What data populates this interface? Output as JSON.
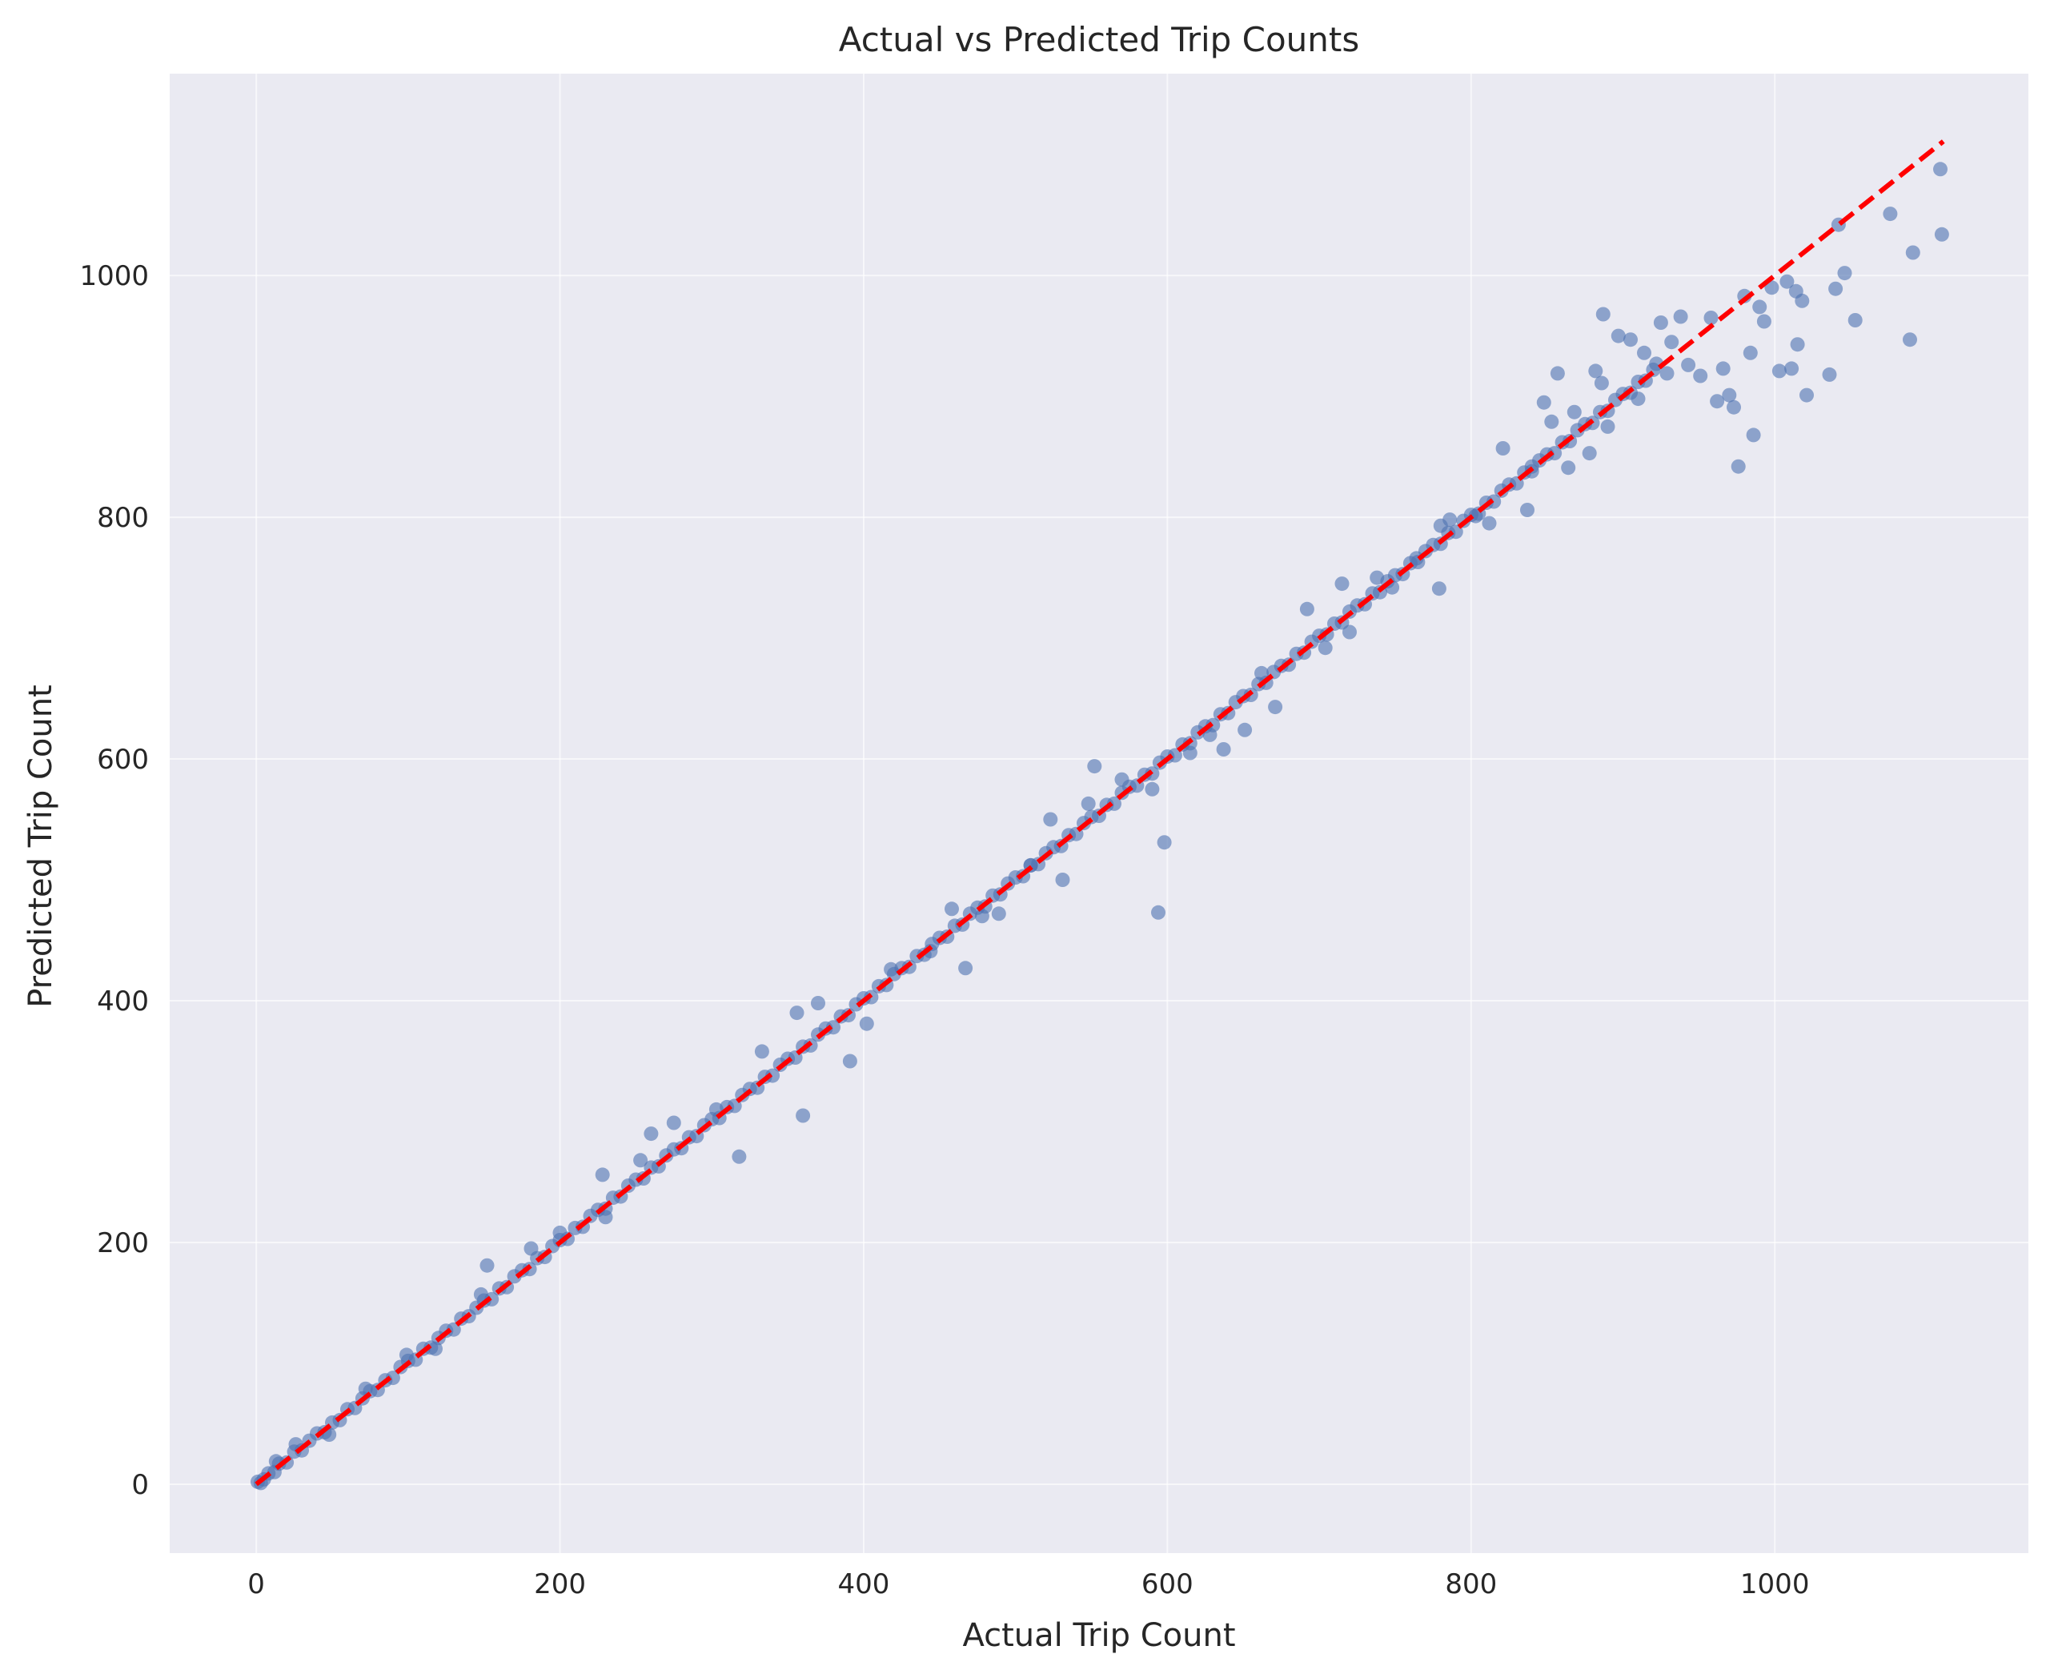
{
  "chart_data": {
    "type": "scatter",
    "title": "Actual vs Predicted Trip Counts",
    "xlabel": "Actual Trip Count",
    "ylabel": "Predicted Trip Count",
    "xlim": [
      -57,
      1167
    ],
    "ylim": [
      -57,
      1167
    ],
    "x_ticks": [
      0,
      200,
      400,
      600,
      800,
      1000
    ],
    "y_ticks": [
      0,
      200,
      400,
      600,
      800,
      1000
    ],
    "grid": true,
    "legend": "none",
    "colors": {
      "background": "#eaeaf2",
      "grid": "#ffffff",
      "points": "#4c72b0",
      "reference_line": "#ff0000"
    },
    "reference_line": {
      "style": "dashed",
      "from": [
        0,
        0
      ],
      "to": [
        1111,
        1111
      ]
    },
    "series": [
      {
        "points": [
          [
            1,
            2
          ],
          [
            3,
            1
          ],
          [
            5,
            4
          ],
          [
            8,
            9
          ],
          [
            12,
            10
          ],
          [
            15,
            17
          ],
          [
            20,
            18
          ],
          [
            25,
            27
          ],
          [
            30,
            28
          ],
          [
            35,
            36
          ],
          [
            40,
            42
          ],
          [
            45,
            43
          ],
          [
            50,
            51
          ],
          [
            55,
            53
          ],
          [
            60,
            62
          ],
          [
            65,
            63
          ],
          [
            70,
            71
          ],
          [
            75,
            77
          ],
          [
            80,
            78
          ],
          [
            85,
            86
          ],
          [
            90,
            88
          ],
          [
            95,
            97
          ],
          [
            100,
            102
          ],
          [
            105,
            103
          ],
          [
            110,
            112
          ],
          [
            115,
            113
          ],
          [
            120,
            121
          ],
          [
            125,
            127
          ],
          [
            130,
            128
          ],
          [
            135,
            137
          ],
          [
            140,
            139
          ],
          [
            145,
            146
          ],
          [
            150,
            152
          ],
          [
            155,
            153
          ],
          [
            160,
            162
          ],
          [
            165,
            163
          ],
          [
            170,
            172
          ],
          [
            175,
            177
          ],
          [
            180,
            178
          ],
          [
            185,
            187
          ],
          [
            190,
            188
          ],
          [
            195,
            197
          ],
          [
            200,
            202
          ],
          [
            205,
            203
          ],
          [
            210,
            212
          ],
          [
            215,
            213
          ],
          [
            220,
            222
          ],
          [
            225,
            227
          ],
          [
            230,
            228
          ],
          [
            235,
            237
          ],
          [
            240,
            238
          ],
          [
            245,
            247
          ],
          [
            250,
            252
          ],
          [
            255,
            253
          ],
          [
            260,
            262
          ],
          [
            265,
            263
          ],
          [
            270,
            272
          ],
          [
            275,
            277
          ],
          [
            280,
            278
          ],
          [
            285,
            287
          ],
          [
            290,
            288
          ],
          [
            295,
            297
          ],
          [
            300,
            302
          ],
          [
            305,
            303
          ],
          [
            310,
            312
          ],
          [
            315,
            313
          ],
          [
            320,
            322
          ],
          [
            325,
            327
          ],
          [
            330,
            328
          ],
          [
            335,
            337
          ],
          [
            340,
            338
          ],
          [
            345,
            347
          ],
          [
            350,
            352
          ],
          [
            355,
            353
          ],
          [
            360,
            362
          ],
          [
            365,
            363
          ],
          [
            370,
            372
          ],
          [
            375,
            377
          ],
          [
            380,
            378
          ],
          [
            385,
            387
          ],
          [
            390,
            388
          ],
          [
            395,
            397
          ],
          [
            400,
            402
          ],
          [
            405,
            403
          ],
          [
            410,
            412
          ],
          [
            415,
            413
          ],
          [
            420,
            422
          ],
          [
            425,
            427
          ],
          [
            430,
            428
          ],
          [
            435,
            437
          ],
          [
            440,
            438
          ],
          [
            445,
            447
          ],
          [
            450,
            452
          ],
          [
            455,
            453
          ],
          [
            460,
            462
          ],
          [
            465,
            463
          ],
          [
            470,
            472
          ],
          [
            475,
            477
          ],
          [
            480,
            478
          ],
          [
            485,
            487
          ],
          [
            490,
            488
          ],
          [
            495,
            497
          ],
          [
            500,
            502
          ],
          [
            505,
            503
          ],
          [
            510,
            512
          ],
          [
            515,
            513
          ],
          [
            520,
            522
          ],
          [
            525,
            527
          ],
          [
            530,
            528
          ],
          [
            535,
            537
          ],
          [
            540,
            538
          ],
          [
            545,
            547
          ],
          [
            550,
            552
          ],
          [
            555,
            553
          ],
          [
            560,
            562
          ],
          [
            565,
            563
          ],
          [
            570,
            572
          ],
          [
            575,
            577
          ],
          [
            580,
            578
          ],
          [
            585,
            587
          ],
          [
            590,
            588
          ],
          [
            595,
            597
          ],
          [
            600,
            602
          ],
          [
            605,
            603
          ],
          [
            610,
            612
          ],
          [
            615,
            613
          ],
          [
            620,
            622
          ],
          [
            625,
            627
          ],
          [
            630,
            628
          ],
          [
            635,
            637
          ],
          [
            640,
            638
          ],
          [
            645,
            647
          ],
          [
            650,
            652
          ],
          [
            655,
            653
          ],
          [
            660,
            662
          ],
          [
            665,
            663
          ],
          [
            670,
            672
          ],
          [
            675,
            677
          ],
          [
            680,
            678
          ],
          [
            685,
            687
          ],
          [
            690,
            688
          ],
          [
            695,
            697
          ],
          [
            700,
            702
          ],
          [
            705,
            703
          ],
          [
            710,
            712
          ],
          [
            715,
            713
          ],
          [
            720,
            722
          ],
          [
            725,
            727
          ],
          [
            730,
            728
          ],
          [
            735,
            737
          ],
          [
            740,
            738
          ],
          [
            745,
            747
          ],
          [
            750,
            752
          ],
          [
            755,
            753
          ],
          [
            760,
            762
          ],
          [
            765,
            763
          ],
          [
            770,
            772
          ],
          [
            775,
            777
          ],
          [
            780,
            778
          ],
          [
            785,
            787
          ],
          [
            790,
            788
          ],
          [
            795,
            797
          ],
          [
            800,
            802
          ],
          [
            805,
            803
          ],
          [
            810,
            812
          ],
          [
            815,
            813
          ],
          [
            820,
            822
          ],
          [
            825,
            827
          ],
          [
            830,
            828
          ],
          [
            835,
            837
          ],
          [
            840,
            838
          ],
          [
            845,
            847
          ],
          [
            850,
            852
          ],
          [
            855,
            853
          ],
          [
            860,
            862
          ],
          [
            865,
            863
          ],
          [
            870,
            872
          ],
          [
            875,
            877
          ],
          [
            880,
            878
          ],
          [
            885,
            887
          ],
          [
            890,
            888
          ],
          [
            895,
            897
          ],
          [
            900,
            902
          ],
          [
            905,
            903
          ],
          [
            910,
            912
          ],
          [
            915,
            913
          ],
          [
            920,
            922
          ],
          [
            13,
            19
          ],
          [
            26,
            33
          ],
          [
            48,
            41
          ],
          [
            72,
            79
          ],
          [
            99,
            107
          ],
          [
            118,
            112
          ],
          [
            148,
            157
          ],
          [
            152,
            181
          ],
          [
            181,
            195
          ],
          [
            200,
            208
          ],
          [
            228,
            256
          ],
          [
            230,
            221
          ],
          [
            253,
            268
          ],
          [
            260,
            290
          ],
          [
            275,
            299
          ],
          [
            303,
            310
          ],
          [
            318,
            271
          ],
          [
            333,
            358
          ],
          [
            360,
            305
          ],
          [
            356,
            390
          ],
          [
            370,
            398
          ],
          [
            391,
            350
          ],
          [
            402,
            381
          ],
          [
            418,
            426
          ],
          [
            444,
            441
          ],
          [
            458,
            476
          ],
          [
            467,
            427
          ],
          [
            478,
            470
          ],
          [
            489,
            472
          ],
          [
            510,
            512
          ],
          [
            523,
            550
          ],
          [
            531,
            500
          ],
          [
            548,
            563
          ],
          [
            552,
            594
          ],
          [
            570,
            583
          ],
          [
            590,
            575
          ],
          [
            594,
            473
          ],
          [
            598,
            531
          ],
          [
            615,
            605
          ],
          [
            628,
            620
          ],
          [
            637,
            608
          ],
          [
            651,
            624
          ],
          [
            662,
            671
          ],
          [
            671,
            643
          ],
          [
            692,
            724
          ],
          [
            704,
            692
          ],
          [
            715,
            745
          ],
          [
            720,
            705
          ],
          [
            738,
            750
          ],
          [
            748,
            742
          ],
          [
            764,
            766
          ],
          [
            779,
            741
          ],
          [
            780,
            793
          ],
          [
            786,
            798
          ],
          [
            803,
            801
          ],
          [
            812,
            795
          ],
          [
            821,
            857
          ],
          [
            837,
            806
          ],
          [
            840,
            842
          ],
          [
            848,
            895
          ],
          [
            853,
            879
          ],
          [
            857,
            919
          ],
          [
            864,
            841
          ],
          [
            868,
            887
          ],
          [
            878,
            853
          ],
          [
            882,
            921
          ],
          [
            886,
            911
          ],
          [
            887,
            968
          ],
          [
            890,
            875
          ],
          [
            897,
            950
          ],
          [
            905,
            947
          ],
          [
            910,
            898
          ],
          [
            914,
            936
          ],
          [
            922,
            927
          ],
          [
            925,
            961
          ],
          [
            929,
            919
          ],
          [
            932,
            945
          ],
          [
            938,
            966
          ],
          [
            943,
            926
          ],
          [
            951,
            917
          ],
          [
            958,
            965
          ],
          [
            962,
            896
          ],
          [
            966,
            923
          ],
          [
            970,
            901
          ],
          [
            973,
            891
          ],
          [
            976,
            842
          ],
          [
            980,
            983
          ],
          [
            984,
            936
          ],
          [
            986,
            868
          ],
          [
            990,
            974
          ],
          [
            993,
            962
          ],
          [
            998,
            990
          ],
          [
            1003,
            921
          ],
          [
            1008,
            995
          ],
          [
            1011,
            923
          ],
          [
            1014,
            987
          ],
          [
            1015,
            943
          ],
          [
            1018,
            979
          ],
          [
            1021,
            901
          ],
          [
            1036,
            918
          ],
          [
            1040,
            989
          ],
          [
            1042,
            1042
          ],
          [
            1046,
            1002
          ],
          [
            1053,
            963
          ],
          [
            1076,
            1051
          ],
          [
            1089,
            947
          ],
          [
            1091,
            1019
          ],
          [
            1109,
            1088
          ],
          [
            1110,
            1034
          ]
        ]
      }
    ]
  }
}
